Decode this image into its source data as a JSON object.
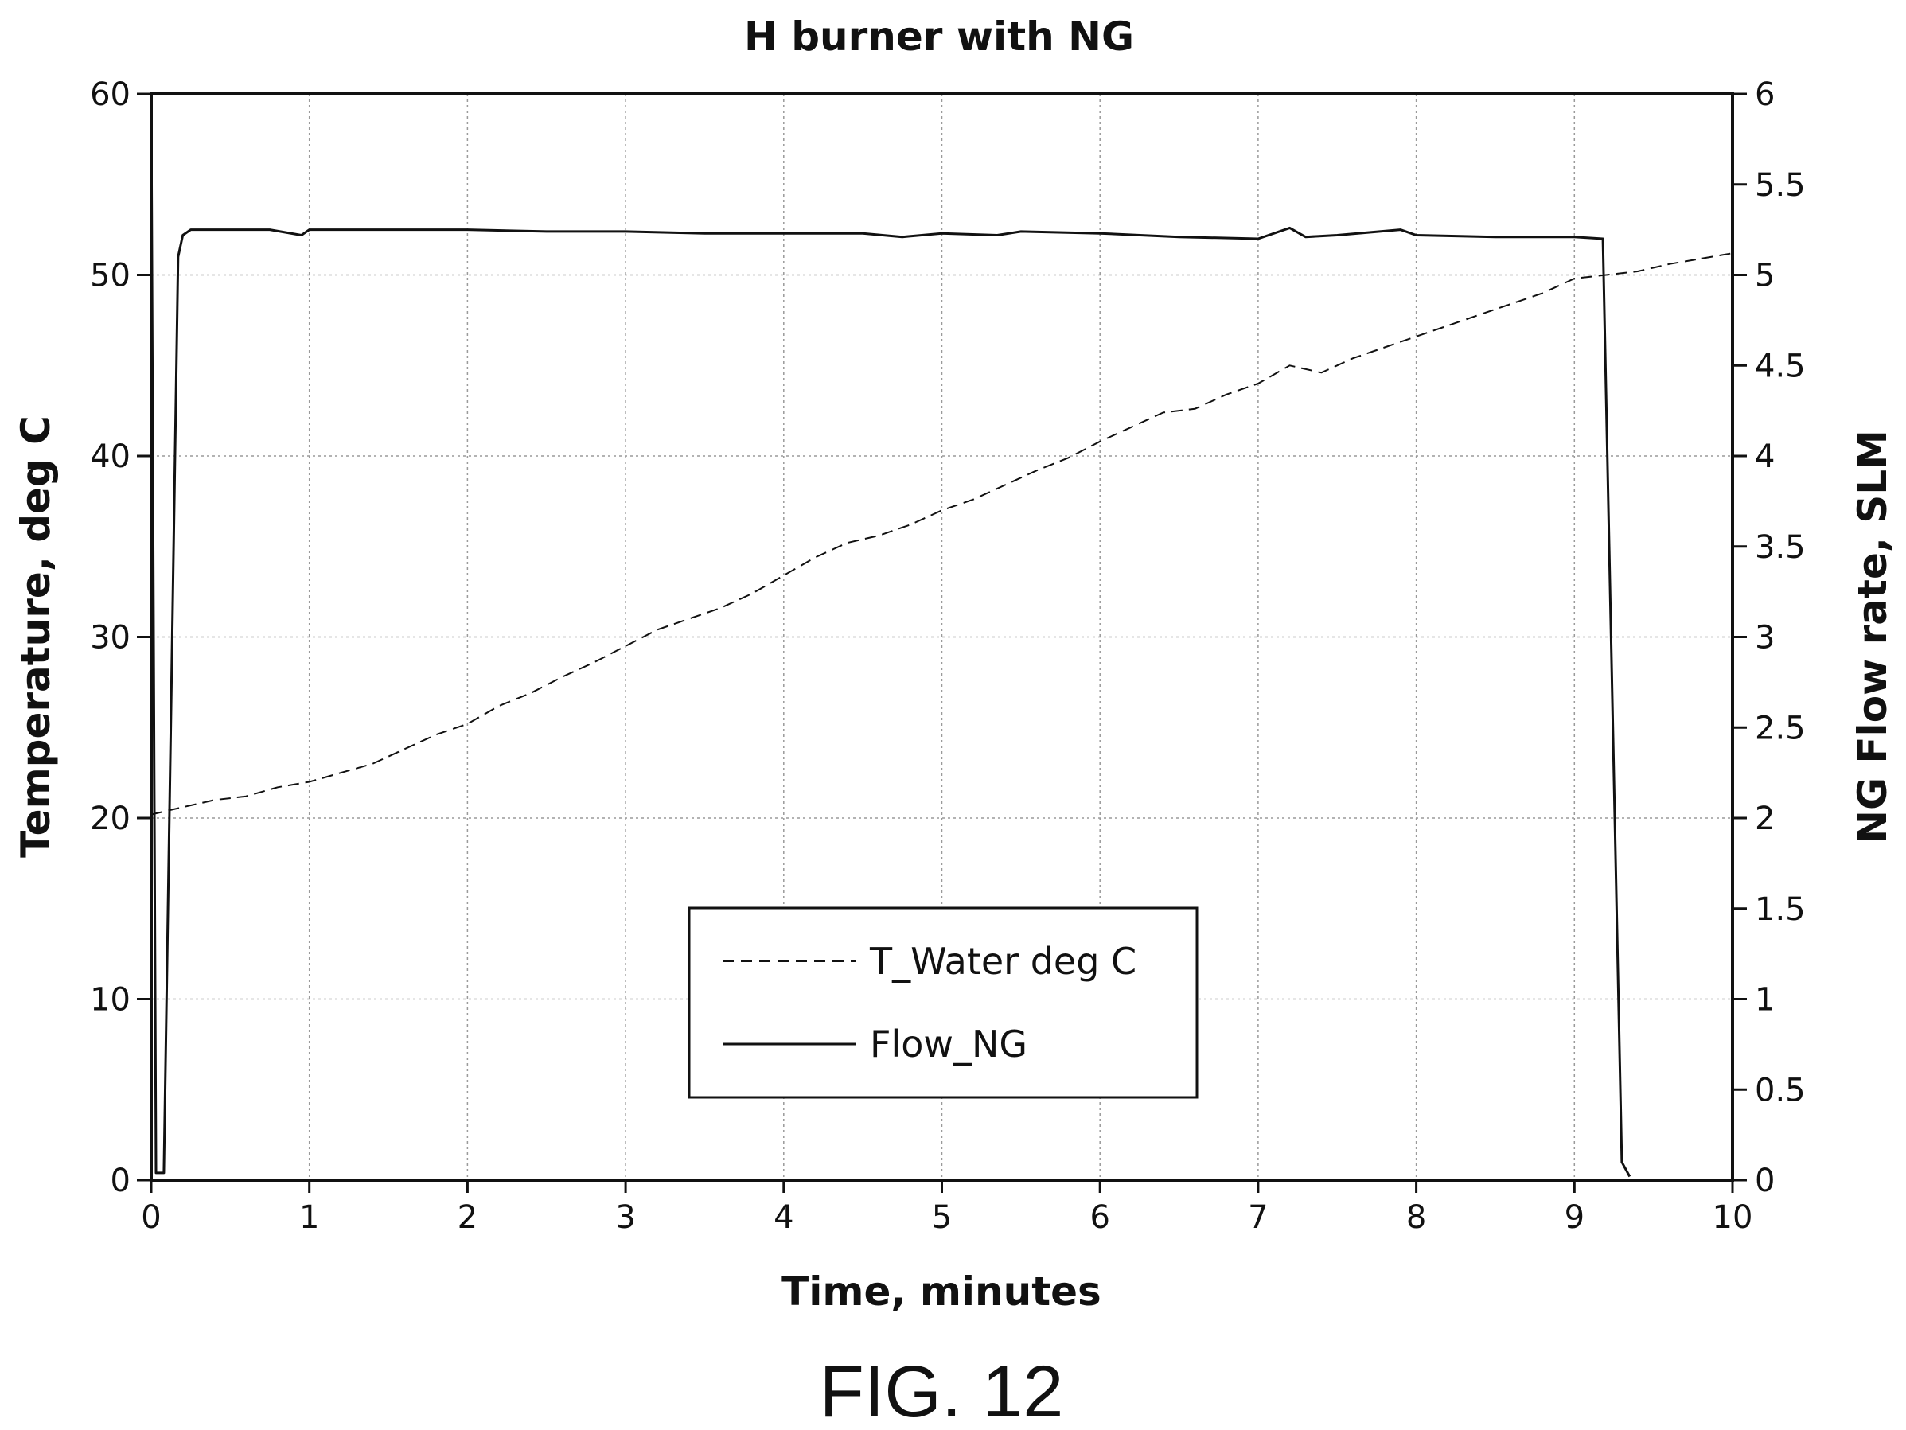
{
  "figure_label": "FIG. 12",
  "chart_data": {
    "type": "line",
    "title": "H burner with NG",
    "xlabel": "Time, minutes",
    "ylabel": "Temperature, deg C",
    "y2label": "NG Flow rate, SLM",
    "xlim": [
      0,
      10
    ],
    "ylim": [
      0,
      60
    ],
    "y2lim": [
      0,
      6
    ],
    "xticks": [
      "0",
      "1",
      "2",
      "3",
      "4",
      "5",
      "6",
      "7",
      "8",
      "9",
      "10"
    ],
    "yticks": [
      "0",
      "10",
      "20",
      "30",
      "40",
      "50",
      "60"
    ],
    "y2ticks": [
      "0",
      "0.5",
      "1",
      "1.5",
      "2",
      "2.5",
      "3",
      "3.5",
      "4",
      "4.5",
      "5",
      "5.5",
      "6"
    ],
    "grid": true,
    "legend_position": "bottom-center",
    "series": [
      {
        "name": "T_Water deg C",
        "axis": "left",
        "style": "dashed",
        "color": "#111111",
        "x": [
          0,
          0.2,
          0.4,
          0.6,
          0.8,
          1.0,
          1.2,
          1.4,
          1.6,
          1.8,
          2.0,
          2.2,
          2.4,
          2.6,
          2.8,
          3.0,
          3.2,
          3.4,
          3.6,
          3.8,
          4.0,
          4.2,
          4.4,
          4.6,
          4.8,
          5.0,
          5.2,
          5.4,
          5.6,
          5.8,
          6.0,
          6.2,
          6.4,
          6.6,
          6.8,
          7.0,
          7.2,
          7.4,
          7.6,
          7.8,
          8.0,
          8.2,
          8.4,
          8.6,
          8.8,
          9.0,
          9.2,
          9.4,
          9.6,
          9.8,
          10.0
        ],
        "y": [
          20.2,
          20.6,
          21.0,
          21.2,
          21.7,
          22.0,
          22.5,
          23.0,
          23.8,
          24.6,
          25.2,
          26.2,
          26.9,
          27.8,
          28.6,
          29.5,
          30.4,
          31.0,
          31.6,
          32.4,
          33.4,
          34.4,
          35.2,
          35.6,
          36.2,
          37.0,
          37.6,
          38.4,
          39.2,
          39.9,
          40.8,
          41.6,
          42.4,
          42.6,
          43.4,
          44.0,
          45.0,
          44.6,
          45.4,
          46.0,
          46.6,
          47.2,
          47.8,
          48.4,
          49.0,
          49.8,
          50.0,
          50.2,
          50.6,
          50.9,
          51.2
        ]
      },
      {
        "name": "Flow_NG",
        "axis": "right",
        "style": "solid",
        "color": "#111111",
        "x": [
          0,
          0.03,
          0.08,
          0.17,
          0.2,
          0.25,
          0.5,
          0.75,
          0.95,
          1.0,
          1.5,
          2.0,
          2.5,
          3.0,
          3.5,
          4.0,
          4.5,
          4.75,
          5.0,
          5.35,
          5.5,
          6.0,
          6.5,
          7.0,
          7.2,
          7.3,
          7.5,
          7.9,
          8.0,
          8.5,
          9.0,
          9.18,
          9.3,
          9.35
        ],
        "y": [
          6.0,
          0.04,
          0.04,
          5.1,
          5.22,
          5.25,
          5.25,
          5.25,
          5.22,
          5.25,
          5.25,
          5.25,
          5.24,
          5.24,
          5.23,
          5.23,
          5.23,
          5.21,
          5.23,
          5.22,
          5.24,
          5.23,
          5.21,
          5.2,
          5.26,
          5.21,
          5.22,
          5.25,
          5.22,
          5.21,
          5.21,
          5.2,
          0.1,
          0.02
        ]
      }
    ]
  }
}
